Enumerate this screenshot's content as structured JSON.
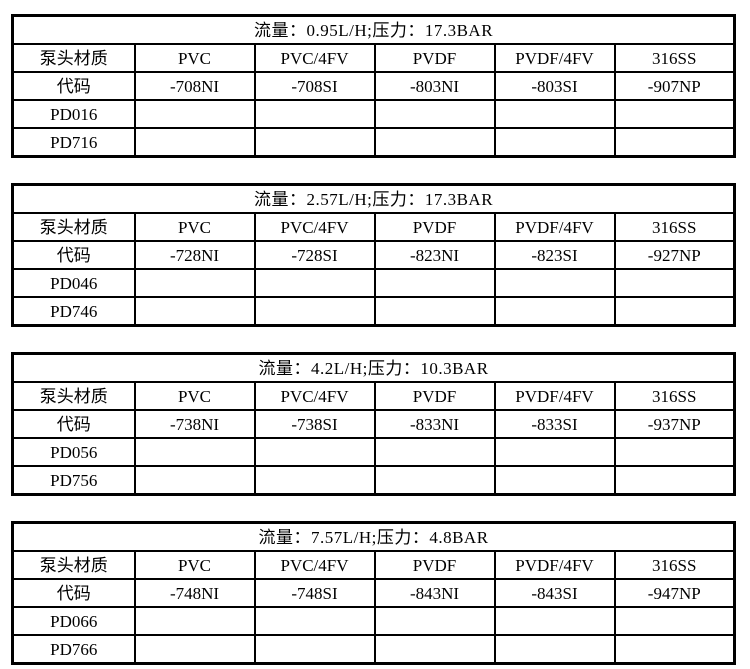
{
  "columns": [
    "泵头材质",
    "PVC",
    "PVC/4FV",
    "PVDF",
    "PVDF/4FV",
    "316SS"
  ],
  "code_label": "代码",
  "tables": [
    {
      "title": "流量：0.95L/H;压力：17.3BAR",
      "codes": [
        "-708NI",
        "-708SI",
        "-803NI",
        "-803SI",
        "-907NP"
      ],
      "models": [
        "PD016",
        "PD716"
      ]
    },
    {
      "title": "流量：2.57L/H;压力：17.3BAR",
      "codes": [
        "-728NI",
        "-728SI",
        "-823NI",
        "-823SI",
        "-927NP"
      ],
      "models": [
        "PD046",
        "PD746"
      ]
    },
    {
      "title": "流量：4.2L/H;压力：10.3BAR",
      "codes": [
        "-738NI",
        "-738SI",
        "-833NI",
        "-833SI",
        "-937NP"
      ],
      "models": [
        "PD056",
        "PD756"
      ]
    },
    {
      "title": "流量：7.57L/H;压力：4.8BAR",
      "codes": [
        "-748NI",
        "-748SI",
        "-843NI",
        "-843SI",
        "-947NP"
      ],
      "models": [
        "PD066",
        "PD766"
      ]
    }
  ],
  "colors": {
    "border": "#000000",
    "background": "#ffffff",
    "text": "#000000"
  }
}
